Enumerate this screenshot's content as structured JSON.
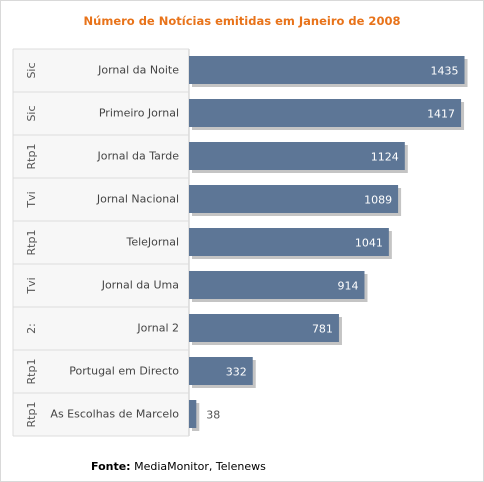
{
  "chart_data": {
    "type": "bar",
    "orientation": "horizontal",
    "title": "Número de Notícias emitidas em Janeiro de 2008",
    "groups": [
      "Sic",
      "Sic",
      "Rtp1",
      "Tvi",
      "Rtp1",
      "Tvi",
      "2:",
      "Rtp1",
      "Rtp1"
    ],
    "categories": [
      "Jornal da Noite",
      "Primeiro Jornal",
      "Jornal da Tarde",
      "Jornal Nacional",
      "TeleJornal",
      "Jornal da Uma",
      "Jornal 2",
      "Portugal em Directo",
      "As Escolhas de Marcelo"
    ],
    "values": [
      1435,
      1417,
      1124,
      1089,
      1041,
      914,
      781,
      332,
      38
    ],
    "xlim": [
      0,
      1500
    ],
    "grid": false,
    "legend": "none"
  },
  "colors": {
    "bar": "#5d7696",
    "bar_shadow": "#c4c4c4",
    "title": "#e8731a",
    "label_panel": "#f7f7f7",
    "separator": "#dcdcdc"
  },
  "source": {
    "label": "Fonte:",
    "text": " MediaMonitor, Telenews"
  }
}
